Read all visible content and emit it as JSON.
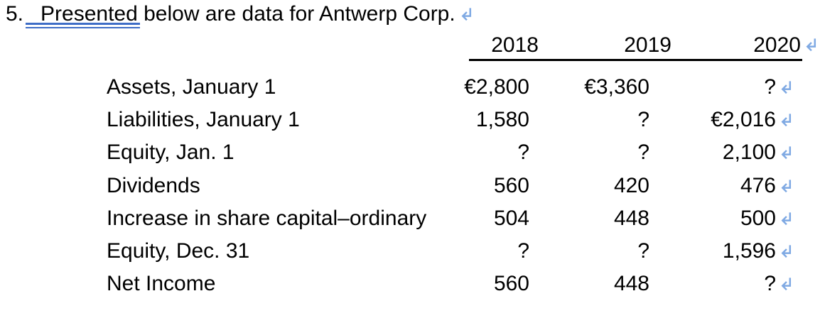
{
  "title": {
    "number": "5.",
    "text": "Presented below are data for Antwerp Corp.",
    "underlined_word": "Presented"
  },
  "table": {
    "columns": [
      "2018",
      "2019",
      "2020"
    ],
    "rows": [
      {
        "label": "Assets, January 1",
        "values": [
          "€2,800",
          "€3,360",
          "?"
        ]
      },
      {
        "label": "Liabilities, January 1",
        "values": [
          "1,580",
          "?",
          "€2,016"
        ]
      },
      {
        "label": "Equity, Jan. 1",
        "values": [
          "?",
          "?",
          "2,100"
        ]
      },
      {
        "label": "Dividends",
        "values": [
          "560",
          "420",
          "476"
        ]
      },
      {
        "label": "Increase in share capital–ordinary",
        "values": [
          "504",
          "448",
          "500"
        ]
      },
      {
        "label": "Equity, Dec. 31",
        "values": [
          "?",
          "?",
          "1,596"
        ]
      },
      {
        "label": "Net Income",
        "values": [
          "560",
          "448",
          "?"
        ]
      }
    ]
  },
  "icons": {
    "line_break": "↵"
  },
  "colors": {
    "formatting_mark_blue": "#7FA9E3",
    "title_underline_blue": "#3E6DC6",
    "text": "#000000",
    "header_rule": "#000000",
    "background": "#FFFFFF"
  }
}
